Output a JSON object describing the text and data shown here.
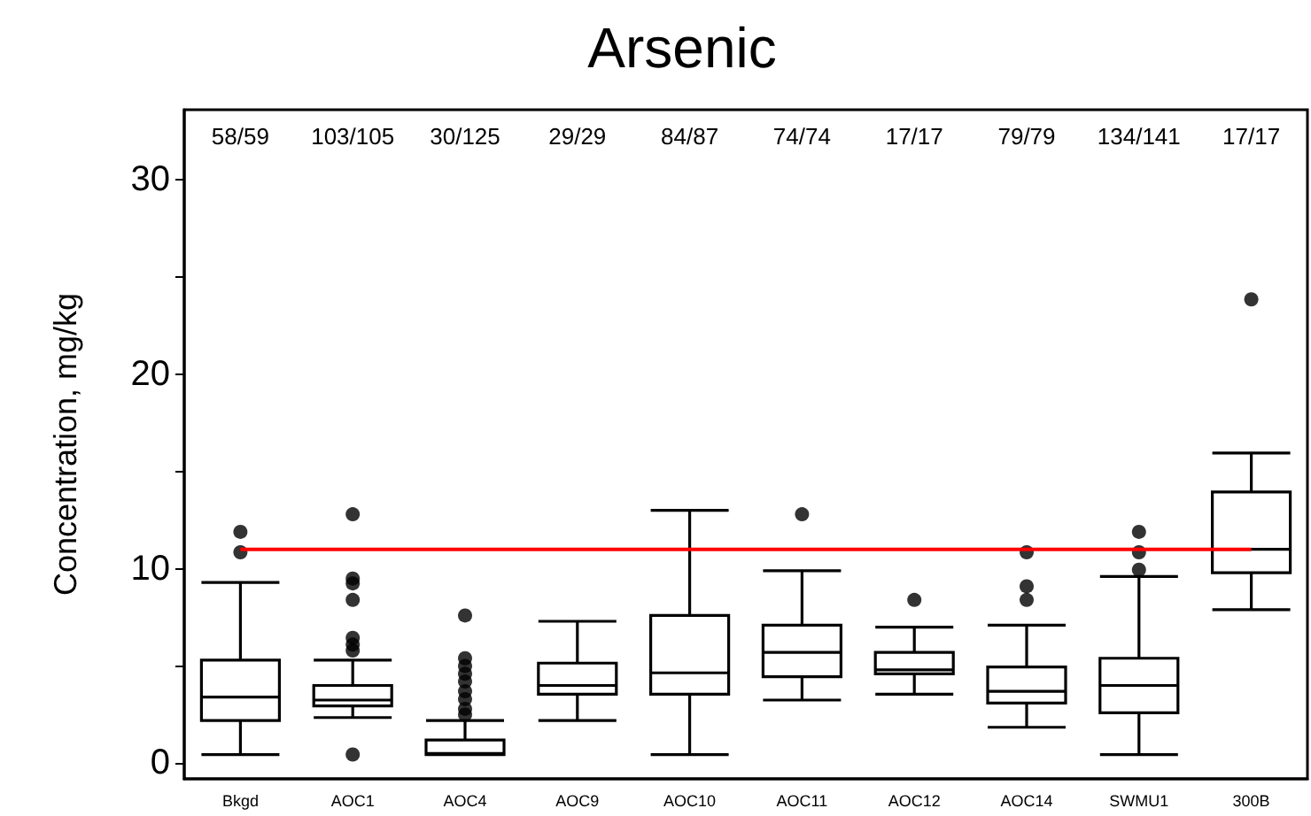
{
  "chart_data": {
    "type": "box",
    "title": "Arsenic",
    "ylabel": "Concentration, mg/kg",
    "categories": [
      "Bkgd",
      "AOC1",
      "AOC4",
      "AOC9",
      "AOC10",
      "AOC11",
      "AOC12",
      "AOC14",
      "SWMU1",
      "300B"
    ],
    "boxes": [
      {
        "low": 0.45,
        "q1": 2.2,
        "median": 3.4,
        "q3": 5.3,
        "high": 9.3,
        "outliers": [
          11.9,
          10.85
        ]
      },
      {
        "low": 2.35,
        "q1": 2.95,
        "median": 3.25,
        "q3": 4.0,
        "high": 5.3,
        "outliers": [
          12.8,
          9.5,
          9.25,
          8.4,
          6.45,
          6.1,
          5.8,
          0.45
        ]
      },
      {
        "low": 0.45,
        "q1": 0.45,
        "median": 0.5,
        "q3": 1.2,
        "high": 2.2,
        "outliers": [
          7.6,
          5.4,
          5.0,
          4.6,
          4.2,
          3.7,
          3.3,
          2.8,
          2.5
        ]
      },
      {
        "low": 2.2,
        "q1": 3.55,
        "median": 4.0,
        "q3": 5.15,
        "high": 7.3
      },
      {
        "low": 0.45,
        "q1": 3.55,
        "median": 4.65,
        "q3": 7.6,
        "high": 13.0
      },
      {
        "low": 3.25,
        "q1": 4.45,
        "median": 5.7,
        "q3": 7.1,
        "high": 9.9,
        "outliers": [
          12.8
        ]
      },
      {
        "low": 3.55,
        "q1": 4.6,
        "median": 4.8,
        "q3": 5.7,
        "high": 7.0,
        "outliers": [
          8.4
        ]
      },
      {
        "low": 1.85,
        "q1": 3.1,
        "median": 3.7,
        "q3": 4.95,
        "high": 7.1,
        "outliers": [
          10.85,
          9.1,
          8.4
        ]
      },
      {
        "low": 0.45,
        "q1": 2.6,
        "median": 4.0,
        "q3": 5.4,
        "high": 9.6,
        "outliers": [
          11.9,
          10.85,
          9.95
        ]
      },
      {
        "low": 7.9,
        "q1": 9.8,
        "median": 11.0,
        "q3": 13.95,
        "high": 15.95,
        "outliers": [
          23.85
        ]
      }
    ],
    "color": "#000000",
    "ylim": [
      -0.8,
      33.6
    ],
    "yticks": [
      0,
      {
        "value": 5,
        "label": null
      },
      10,
      {
        "value": 15,
        "label": null
      },
      20,
      {
        "value": 25,
        "label": null
      },
      30
    ],
    "ref_lines": [
      {
        "axis": "y",
        "value": 11,
        "color": "#ff0000"
      }
    ],
    "annotations": [
      "58/59",
      "103/105",
      "30/125",
      "29/29",
      "84/87",
      "74/74",
      "17/17",
      "79/79",
      "134/141",
      "17/17"
    ],
    "grid": false
  }
}
